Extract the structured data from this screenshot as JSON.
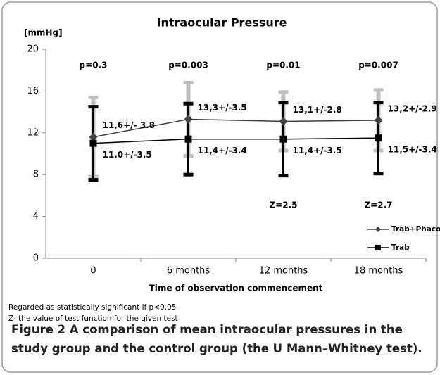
{
  "chart_data": {
    "type": "line",
    "title": "Intraocular Pressure",
    "ylabel": "[mmHg]",
    "xlabel": "Time of observation commencement",
    "categories": [
      "0",
      "6 months",
      "12 months",
      "18 months"
    ],
    "series": [
      {
        "name": "Trab+Phaco",
        "color": "#404040",
        "error_color": "#bdbdbd",
        "marker": "diamond",
        "values": [
          11.6,
          13.3,
          13.1,
          13.2
        ],
        "errors": [
          3.8,
          3.5,
          2.8,
          2.9
        ],
        "value_labels": [
          "11,6+/- 3.8",
          "13,3+/-3.5",
          "13,1+/-2.8",
          "13,2+/-2.9"
        ]
      },
      {
        "name": "Trab",
        "color": "#000000",
        "error_color": "#000000",
        "marker": "square",
        "values": [
          11.0,
          11.4,
          11.4,
          11.5
        ],
        "errors": [
          3.5,
          3.4,
          3.5,
          3.4
        ],
        "value_labels": [
          "11.0+/-3.5",
          "11,4+/-3.4",
          "11,4+/-3.5",
          "11,5+/-3.4"
        ]
      }
    ],
    "p_values": [
      "p=0.3",
      "p=0.003",
      "p=0.01",
      "p=0.007"
    ],
    "z_values": [
      null,
      null,
      "Z=2.5",
      "Z=2.7"
    ],
    "ylim": [
      0,
      20
    ],
    "yticks": [
      0,
      4,
      8,
      12,
      16,
      20
    ],
    "grid": false,
    "legend": "lower right"
  },
  "notes": [
    "Regarded as statistically significant if p<0.05",
    "Z- the value of test function for the given test"
  ],
  "caption": {
    "label": "Figure 2",
    "text": "A comparison of mean intraocular pressures in the study group and the control group (the U Mann–Whitney test)."
  }
}
